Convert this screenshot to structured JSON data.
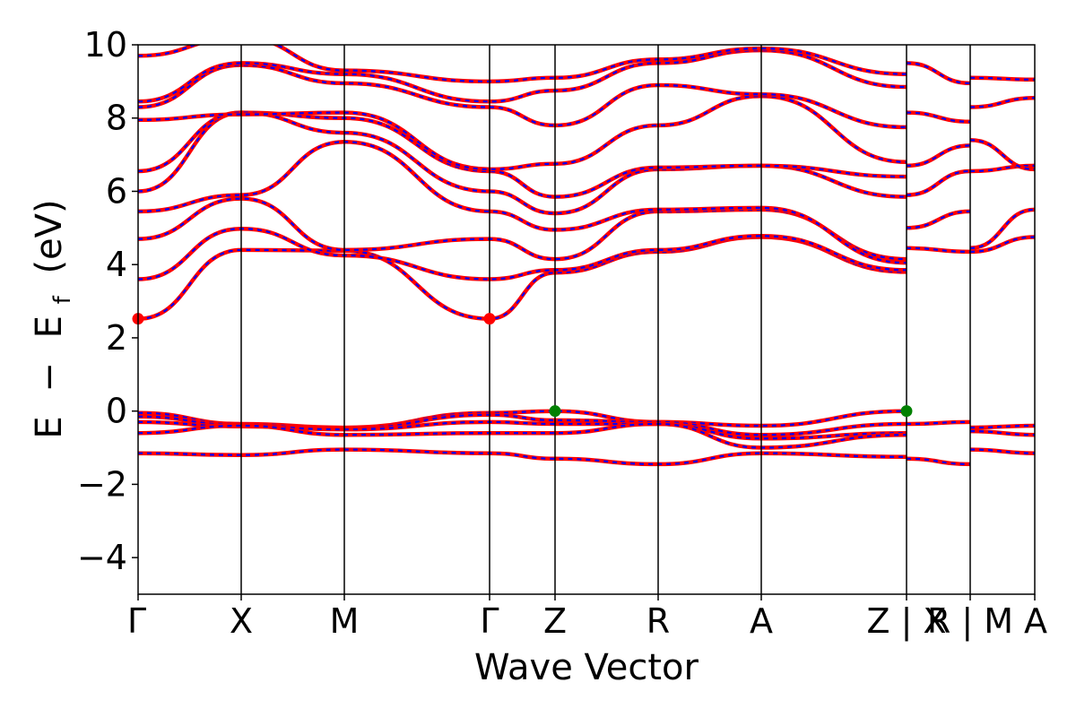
{
  "chart_data": {
    "type": "line",
    "xlabel": "Wave Vector",
    "ylabel_parts": [
      "E",
      "−",
      "E",
      "f",
      "(eV)"
    ],
    "ylim": [
      -5,
      10
    ],
    "yticks": [
      {
        "value": -4,
        "label": "−4"
      },
      {
        "value": -2,
        "label": "−2"
      },
      {
        "value": 0,
        "label": "0"
      },
      {
        "value": 2,
        "label": "2"
      },
      {
        "value": 4,
        "label": "4"
      },
      {
        "value": 6,
        "label": "6"
      },
      {
        "value": 8,
        "label": "8"
      },
      {
        "value": 10,
        "label": "10"
      }
    ],
    "xlim": [
      0,
      10
    ],
    "kpoints": [
      {
        "x": 0.0,
        "label": "Γ"
      },
      {
        "x": 1.15,
        "label": "X"
      },
      {
        "x": 2.3,
        "label": "M"
      },
      {
        "x": 3.92,
        "label": "Γ"
      },
      {
        "x": 4.65,
        "label": "Z"
      },
      {
        "x": 5.8,
        "label": "R"
      },
      {
        "x": 6.95,
        "label": "A"
      },
      {
        "x": 8.57,
        "label": "Z | X"
      },
      {
        "x": 9.28,
        "label": "R | M"
      },
      {
        "x": 10.0,
        "label": "A"
      }
    ],
    "line_colors": {
      "dft": "#ff0000",
      "wannier": "#0000ff"
    },
    "marker_colors": {
      "cbm": "#ff0000",
      "vbm": "#008000"
    },
    "markers": [
      {
        "kind": "cbm",
        "x": 0.0,
        "y": 2.52
      },
      {
        "kind": "cbm",
        "x": 3.92,
        "y": 2.52
      },
      {
        "kind": "vbm",
        "x": 4.65,
        "y": 0.0
      },
      {
        "kind": "vbm",
        "x": 8.57,
        "y": 0.0
      }
    ],
    "series": [
      {
        "x": [
          0,
          1.15,
          2.3,
          3.92,
          4.65,
          5.8,
          6.95,
          8.57
        ],
        "y": [
          2.52,
          4.4,
          4.38,
          2.52,
          3.78,
          4.35,
          4.75,
          3.8
        ]
      },
      {
        "x": [
          0,
          1.15,
          2.3,
          3.92,
          4.65,
          5.8,
          6.95,
          8.57
        ],
        "y": [
          3.6,
          4.98,
          4.25,
          3.6,
          3.85,
          4.4,
          4.78,
          3.85
        ]
      },
      {
        "x": [
          0,
          1.15,
          2.3,
          3.92,
          4.65,
          5.8,
          6.95,
          8.57
        ],
        "y": [
          4.7,
          5.8,
          4.4,
          4.7,
          4.15,
          5.45,
          5.5,
          4.15
        ]
      },
      {
        "x": [
          0,
          1.15,
          2.3,
          3.92,
          4.65,
          5.8,
          6.95,
          8.57
        ],
        "y": [
          5.45,
          5.9,
          7.35,
          5.45,
          4.95,
          5.5,
          5.55,
          4.05
        ]
      },
      {
        "x": [
          0,
          1.15,
          2.3,
          3.92,
          4.65,
          5.8,
          6.95,
          8.57
        ],
        "y": [
          6.0,
          8.15,
          7.6,
          6.0,
          5.4,
          6.6,
          6.7,
          5.85
        ]
      },
      {
        "x": [
          0,
          1.15,
          2.3,
          3.92,
          4.65,
          5.8,
          6.95,
          8.57
        ],
        "y": [
          6.55,
          8.15,
          8.0,
          6.55,
          5.85,
          6.65,
          6.7,
          6.4
        ]
      },
      {
        "x": [
          0,
          1.15,
          2.3,
          3.92,
          4.65,
          5.8,
          6.95,
          8.57
        ],
        "y": [
          7.95,
          8.1,
          8.15,
          6.6,
          6.75,
          7.8,
          8.6,
          6.8
        ]
      },
      {
        "x": [
          0,
          1.15,
          2.3,
          3.92,
          4.65,
          5.8,
          6.95,
          8.57
        ],
        "y": [
          8.3,
          9.45,
          8.95,
          8.3,
          7.8,
          8.9,
          8.65,
          7.75
        ]
      },
      {
        "x": [
          0,
          1.15,
          2.3,
          3.92,
          4.65,
          5.8,
          6.95,
          8.57
        ],
        "y": [
          8.45,
          9.5,
          9.2,
          8.45,
          8.75,
          9.5,
          9.85,
          8.85
        ]
      },
      {
        "x": [
          0,
          1.15,
          2.3,
          3.92,
          4.65,
          5.8,
          6.95,
          8.57
        ],
        "y": [
          9.7,
          10.2,
          9.3,
          9.0,
          9.1,
          9.6,
          9.9,
          9.2
        ]
      },
      {
        "x": [
          8.57,
          9.28
        ],
        "y": [
          4.45,
          4.35
        ]
      },
      {
        "x": [
          8.57,
          9.28
        ],
        "y": [
          5.0,
          5.45
        ]
      },
      {
        "x": [
          8.57,
          9.28
        ],
        "y": [
          5.9,
          6.55
        ]
      },
      {
        "x": [
          8.57,
          9.28
        ],
        "y": [
          6.7,
          7.25
        ]
      },
      {
        "x": [
          8.57,
          9.28
        ],
        "y": [
          8.15,
          7.9
        ]
      },
      {
        "x": [
          8.57,
          9.28
        ],
        "y": [
          9.5,
          8.95
        ]
      },
      {
        "x": [
          9.28,
          10.0
        ],
        "y": [
          4.35,
          4.75
        ]
      },
      {
        "x": [
          9.28,
          10.0
        ],
        "y": [
          4.45,
          5.5
        ]
      },
      {
        "x": [
          9.28,
          10.0
        ],
        "y": [
          6.55,
          6.7
        ]
      },
      {
        "x": [
          9.28,
          10.0
        ],
        "y": [
          7.4,
          6.6
        ]
      },
      {
        "x": [
          9.28,
          10.0
        ],
        "y": [
          8.3,
          8.55
        ]
      },
      {
        "x": [
          9.28,
          10.0
        ],
        "y": [
          9.1,
          9.05
        ]
      },
      {
        "x": [
          0,
          1.15,
          2.3,
          3.92,
          4.65,
          5.8,
          6.95,
          8.57
        ],
        "y": [
          -0.05,
          -0.35,
          -0.45,
          -0.05,
          0.0,
          -0.3,
          -0.4,
          0.0
        ]
      },
      {
        "x": [
          0,
          1.15,
          2.3,
          3.92,
          4.65,
          5.8,
          6.95,
          8.57
        ],
        "y": [
          -0.15,
          -0.38,
          -0.48,
          -0.1,
          -0.25,
          -0.3,
          -0.65,
          -0.35
        ]
      },
      {
        "x": [
          0,
          1.15,
          2.3,
          3.92,
          4.65,
          5.8,
          6.95,
          8.57
        ],
        "y": [
          -0.3,
          -0.42,
          -0.5,
          -0.3,
          -0.35,
          -0.35,
          -0.75,
          -0.6
        ]
      },
      {
        "x": [
          0,
          1.15,
          2.3,
          3.92,
          4.65,
          5.8,
          6.95,
          8.57
        ],
        "y": [
          -0.6,
          -0.4,
          -0.65,
          -0.6,
          -0.6,
          -0.35,
          -1.0,
          -0.65
        ]
      },
      {
        "x": [
          0,
          1.15,
          2.3,
          3.92,
          4.65,
          5.8,
          6.95,
          8.57
        ],
        "y": [
          -1.15,
          -1.2,
          -1.05,
          -1.15,
          -1.3,
          -1.45,
          -1.15,
          -1.25
        ]
      },
      {
        "x": [
          8.57,
          9.28
        ],
        "y": [
          -0.35,
          -0.3
        ]
      },
      {
        "x": [
          8.57,
          9.28
        ],
        "y": [
          -1.3,
          -1.45
        ]
      },
      {
        "x": [
          9.28,
          10.0
        ],
        "y": [
          -0.45,
          -0.4
        ]
      },
      {
        "x": [
          9.28,
          10.0
        ],
        "y": [
          -0.55,
          -0.65
        ]
      },
      {
        "x": [
          9.28,
          10.0
        ],
        "y": [
          -1.05,
          -1.15
        ]
      }
    ]
  }
}
